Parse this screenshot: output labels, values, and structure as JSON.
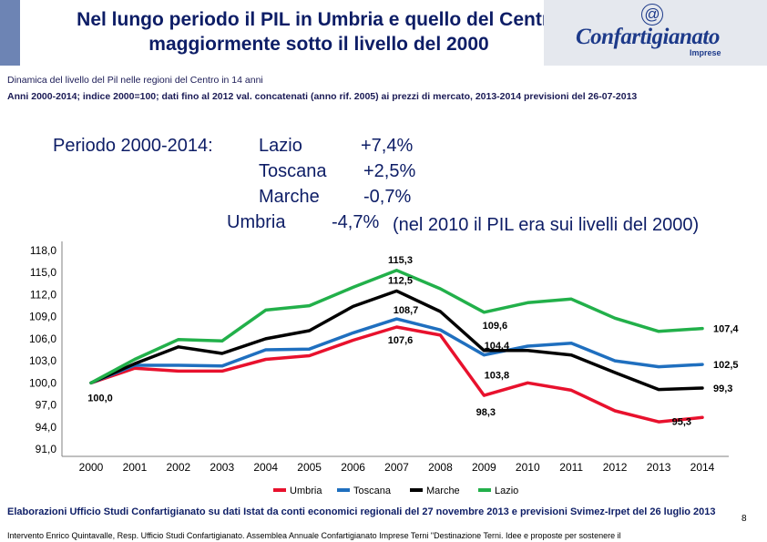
{
  "header": {
    "title": "Nel lungo periodo il PIL in Umbria e quello del Centro maggiormente sotto il livello del 2000",
    "subtitle": "Dinamica del livello del Pil nelle regioni del Centro in 14 anni",
    "description": "Anni 2000-2014; indice 2000=100; dati fino al 2012 val. concatenati (anno rif. 2005) ai prezzi di mercato, 2013-2014 previsioni del 26-07-2013"
  },
  "logo": {
    "symbol": "@",
    "brand": "Confartigianato",
    "sub": "Imprese"
  },
  "periodo": {
    "heading": "Periodo 2000-2014:",
    "rows": [
      {
        "region": "Lazio",
        "value": "+7,4%",
        "note": ""
      },
      {
        "region": "Toscana",
        "value": "+2,5%",
        "note": ""
      },
      {
        "region": "Marche",
        "value": "-0,7%",
        "note": ""
      },
      {
        "region": "Umbria",
        "value": "-4,7%",
        "note": "(nel 2010 il PIL era sui livelli del 2000)"
      }
    ]
  },
  "chart_data": {
    "type": "line",
    "title": "",
    "categories": [
      "2000",
      "2001",
      "2002",
      "2003",
      "2004",
      "2005",
      "2006",
      "2007",
      "2008",
      "2009",
      "2010",
      "2011",
      "2012",
      "2013",
      "2014"
    ],
    "y_ticks": [
      "91,0",
      "94,0",
      "97,0",
      "100,0",
      "103,0",
      "106,0",
      "109,0",
      "112,0",
      "115,0",
      "118,0"
    ],
    "ylim": [
      91,
      118
    ],
    "grid": false,
    "legend_position": "bottom",
    "series": [
      {
        "name": "Umbria",
        "color": "#e8112d",
        "values": [
          100.0,
          102.0,
          101.6,
          101.6,
          103.2,
          103.7,
          105.8,
          107.6,
          106.5,
          98.3,
          100.0,
          99.0,
          96.2,
          94.7,
          95.3
        ]
      },
      {
        "name": "Toscana",
        "color": "#1f6fbf",
        "values": [
          100.0,
          102.4,
          102.4,
          102.3,
          104.5,
          104.6,
          106.8,
          108.7,
          107.2,
          103.8,
          105.0,
          105.4,
          103.0,
          102.2,
          102.5
        ]
      },
      {
        "name": "Marche",
        "color": "#000000",
        "values": [
          100.0,
          102.6,
          104.9,
          104.0,
          106.0,
          107.1,
          110.4,
          112.5,
          109.7,
          104.4,
          104.4,
          103.8,
          101.4,
          99.1,
          99.3
        ]
      },
      {
        "name": "Lazio",
        "color": "#22b04a",
        "values": [
          100.0,
          103.2,
          105.9,
          105.7,
          109.9,
          110.5,
          113.0,
          115.3,
          112.8,
          109.6,
          110.9,
          111.4,
          108.8,
          107.0,
          107.4
        ]
      }
    ],
    "data_labels": [
      {
        "series": "Umbria",
        "text": "100,0",
        "category": "2000"
      },
      {
        "series": "Lazio",
        "text": "115,3",
        "category": "2007"
      },
      {
        "series": "Marche",
        "text": "112,5",
        "category": "2007"
      },
      {
        "series": "Toscana",
        "text": "108,7",
        "category": "2007"
      },
      {
        "series": "Umbria",
        "text": "107,6",
        "category": "2007"
      },
      {
        "series": "Lazio",
        "text": "109,6",
        "category": "2009"
      },
      {
        "series": "Marche",
        "text": "104,4",
        "category": "2009"
      },
      {
        "series": "Toscana",
        "text": "103,8",
        "category": "2009"
      },
      {
        "series": "Umbria",
        "text": "98,3",
        "category": "2009"
      },
      {
        "series": "Lazio",
        "text": "107,4",
        "category": "2014"
      },
      {
        "series": "Toscana",
        "text": "102,5",
        "category": "2014"
      },
      {
        "series": "Marche",
        "text": "99,3",
        "category": "2014"
      },
      {
        "series": "Umbria",
        "text": "95,3",
        "category": "2014"
      }
    ]
  },
  "footer": {
    "note": "Elaborazioni Ufficio Studi Confartigianato su dati Istat da conti economici regionali del 27 novembre 2013 e previsioni Svimez-Irpet del 26 luglio 2013",
    "page": "8",
    "credit": "Intervento Enrico Quintavalle, Resp. Ufficio Studi Confartigianato. Assemblea Annuale Confartigianato Imprese Terni \"Destinazione Terni. Idee e proposte per sostenere il"
  }
}
